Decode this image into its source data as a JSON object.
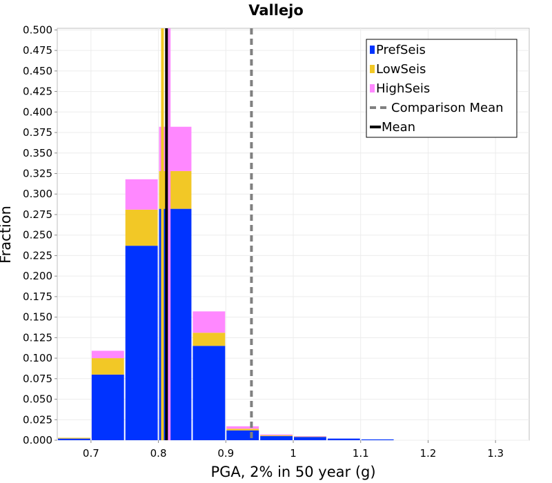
{
  "chart_data": {
    "type": "bar",
    "stacked": true,
    "title": "Vallejo",
    "xlabel": "PGA, 2% in 50 year (g)",
    "ylabel": "Fraction",
    "xlim": [
      0.65,
      1.35
    ],
    "ylim": [
      0,
      0.502
    ],
    "xticks": [
      0.7,
      0.8,
      0.9,
      1.0,
      1.1,
      1.2,
      1.3
    ],
    "xtick_labels": [
      "0.7",
      "0.8",
      "0.9",
      "1",
      "1.1",
      "1.2",
      "1.3"
    ],
    "yticks": [
      0,
      0.025,
      0.05,
      0.075,
      0.1,
      0.125,
      0.15,
      0.175,
      0.2,
      0.225,
      0.25,
      0.275,
      0.3,
      0.325,
      0.35,
      0.375,
      0.4,
      0.425,
      0.45,
      0.475,
      0.5
    ],
    "ytick_labels": [
      "0.000",
      "0.025",
      "0.050",
      "0.075",
      "0.100",
      "0.125",
      "0.150",
      "0.175",
      "0.200",
      "0.225",
      "0.250",
      "0.275",
      "0.300",
      "0.325",
      "0.350",
      "0.375",
      "0.400",
      "0.425",
      "0.450",
      "0.475",
      "0.500"
    ],
    "bin_width": 0.05,
    "bins": [
      0.675,
      0.725,
      0.775,
      0.825,
      0.875,
      0.925,
      0.975,
      1.025,
      1.075,
      1.125
    ],
    "series": [
      {
        "name": "PrefSeis",
        "color": "#0033ff",
        "values": [
          0.002,
          0.08,
          0.237,
          0.282,
          0.115,
          0.012,
          0.005,
          0.004,
          0.002,
          0.001
        ]
      },
      {
        "name": "LowSeis",
        "color": "#f2c826",
        "values": [
          0.001,
          0.02,
          0.044,
          0.046,
          0.016,
          0.002,
          0.001,
          0.0005,
          0.0,
          0.0
        ]
      },
      {
        "name": "HighSeis",
        "color": "#ff88ff",
        "values": [
          0.0,
          0.009,
          0.037,
          0.054,
          0.026,
          0.003,
          0.001,
          0.0005,
          0.0,
          0.0
        ]
      }
    ],
    "vertical_lines": [
      {
        "name": "LowSeis Mean",
        "x": 0.806,
        "color": "#f2c826",
        "style": "solid"
      },
      {
        "name": "HighSeis Mean",
        "x": 0.816,
        "color": "#ff88ff",
        "style": "solid"
      },
      {
        "name": "Mean",
        "x": 0.812,
        "color": "#000000",
        "style": "solid"
      },
      {
        "name": "Comparison Mean",
        "x": 0.938,
        "color": "#808080",
        "style": "dashed"
      }
    ],
    "legend": {
      "position": "top-right",
      "entries": [
        {
          "label": "PrefSeis",
          "color": "#0033ff",
          "kind": "box"
        },
        {
          "label": "LowSeis",
          "color": "#f2c826",
          "kind": "box"
        },
        {
          "label": "HighSeis",
          "color": "#ff88ff",
          "kind": "box"
        },
        {
          "label": "Comparison Mean",
          "color": "#808080",
          "kind": "dash"
        },
        {
          "label": "Mean",
          "color": "#000000",
          "kind": "line"
        }
      ]
    },
    "grid": true
  }
}
